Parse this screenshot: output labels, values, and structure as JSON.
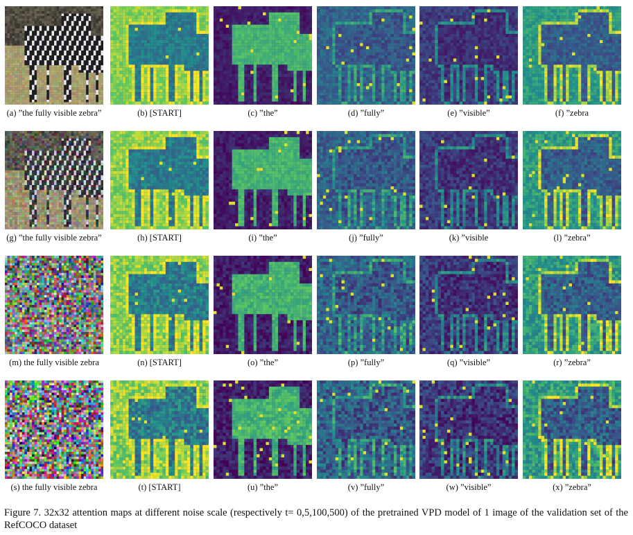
{
  "rows": [
    {
      "noise_t": 0,
      "captions": [
        "(a) ”the fully visible zebra”",
        "(b) [START]",
        "(c) ”the”",
        "(d) ”fully”",
        "(e) ”visible”",
        "(f) ”zebra"
      ]
    },
    {
      "noise_t": 5,
      "captions": [
        "(g) ”the fully visible zebra”",
        "(h) [START]",
        "(i) ”the”",
        "(j) ”fully”",
        "(k) ”visible",
        "(l) ”zebra”"
      ]
    },
    {
      "noise_t": 100,
      "captions": [
        "(m) the fully visible zebra",
        "(n) [START]",
        "(o) ”the”",
        "(p) ”fully”",
        "(q) ”visible”",
        "(r) ”zebra”"
      ]
    },
    {
      "noise_t": 500,
      "captions": [
        "(s) the fully visible zebra",
        "(t) [START]",
        "(u) ”the”",
        "(v) ”fully”",
        "(w) ”visible”",
        "(x) ”zebra”"
      ]
    }
  ],
  "colormap": [
    "#440154",
    "#3b528b",
    "#21918c",
    "#5ec962",
    "#fde725"
  ],
  "figure_caption": "Figure 7.  32x32 attention maps at different noise scale (respectively t= 0,5,100,500) of the pretrained VPD model of 1 image of the validation set of the RefCOCO dataset"
}
